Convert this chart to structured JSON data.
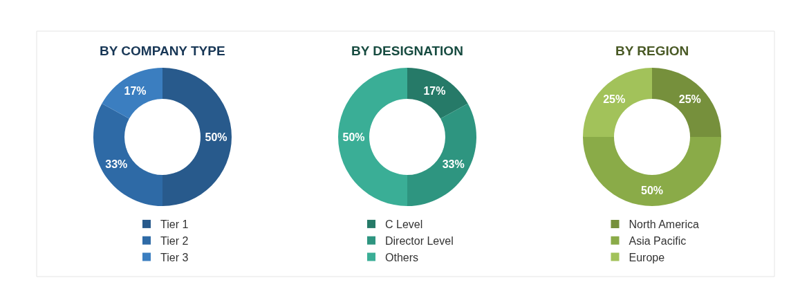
{
  "chart_data": [
    {
      "type": "donut",
      "title": "BY COMPANY TYPE",
      "categories": [
        "Tier 1",
        "Tier 2",
        "Tier 3"
      ],
      "values": [
        50,
        33,
        17
      ],
      "colors": [
        "#285a8c",
        "#2e6aa6",
        "#3b7ec0"
      ],
      "value_labels": [
        "50%",
        "33%",
        "17%"
      ],
      "legend": "bottom"
    },
    {
      "type": "donut",
      "title": "BY DESIGNATION",
      "categories": [
        "C Level",
        "Director Level",
        "Others"
      ],
      "values": [
        17,
        33,
        50
      ],
      "colors": [
        "#267a68",
        "#2e9580",
        "#3aae96"
      ],
      "value_labels": [
        "17%",
        "33%",
        "50%"
      ],
      "legend": "bottom"
    },
    {
      "type": "donut",
      "title": "BY REGION",
      "categories": [
        "North America",
        "Asia Pacific",
        "Europe"
      ],
      "values": [
        25,
        50,
        25
      ],
      "colors": [
        "#76903c",
        "#8aab48",
        "#a2c25a"
      ],
      "value_labels": [
        "25%",
        "50%",
        "25%"
      ],
      "legend": "bottom"
    }
  ]
}
